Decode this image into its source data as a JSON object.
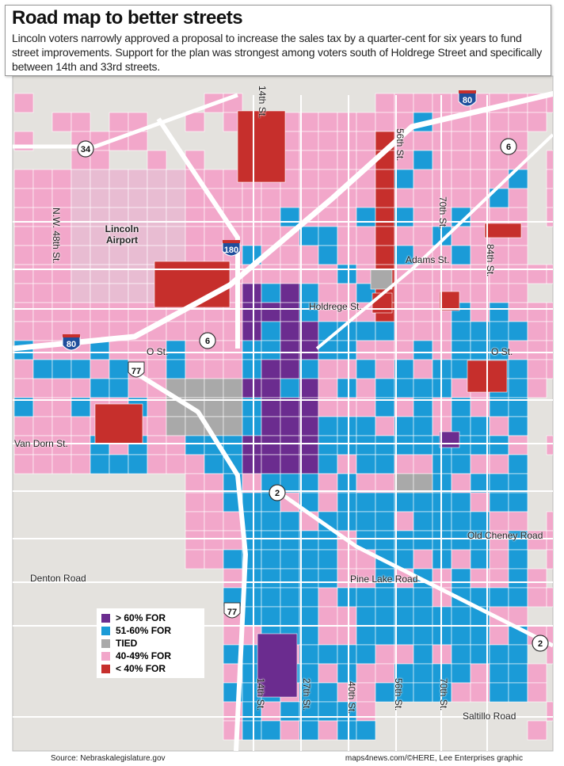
{
  "header": {
    "title": "Road map to better streets",
    "subtitle": "Lincoln voters narrowly approved a proposal to increase the sales tax by a quarter-cent for six years to fund street improvements. Support for the plan was strongest among voters south of Holdrege Street and specifically between 14th and 33rd streets."
  },
  "legend": [
    {
      "label": "> 60% FOR",
      "color": "#6b2c8f"
    },
    {
      "label": "51-60% FOR",
      "color": "#1b9bd7"
    },
    {
      "label": "TIED",
      "color": "#a9a9a9"
    },
    {
      "label": "40-49% FOR",
      "color": "#f2a7ca"
    },
    {
      "label": "< 40% FOR",
      "color": "#c62f2c"
    }
  ],
  "map_labels": [
    "14th St.",
    "56th St.",
    "70th St.",
    "84th St.",
    "N.W. 48th St.",
    "Lincoln Airport",
    "Adams St.",
    "Holdrege St.",
    "O St.",
    "O St.",
    "Van Dorn St.",
    "Old Cheney Road",
    "Denton Road",
    "Pine Lake Road",
    "Saltillo Road",
    "14th St.",
    "27th St.",
    "40th St.",
    "56th St.",
    "70th St."
  ],
  "shields": [
    "34",
    "6",
    "80",
    "180",
    "80",
    "6",
    "77",
    "2",
    "77",
    "2"
  ],
  "footer": {
    "source": "Source: Nebraskalegislature.gov",
    "credit": "maps4news.com/©HERE, Lee Enterprises graphic"
  }
}
